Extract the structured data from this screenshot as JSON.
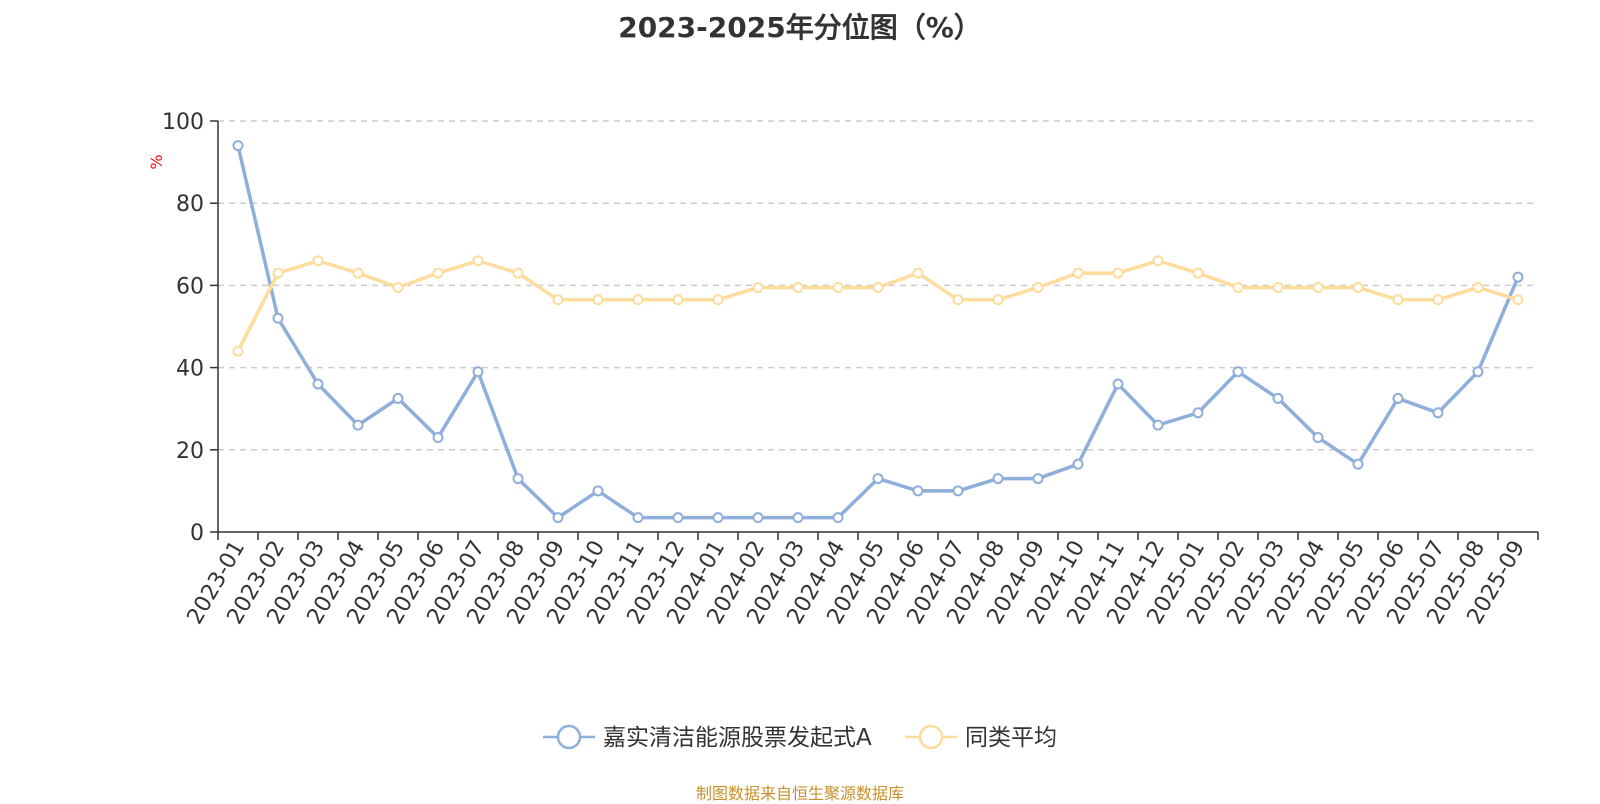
{
  "chart_data": {
    "type": "line",
    "title": "2023-2025年分位图（%）",
    "y_unit": "%",
    "ylim": [
      0,
      100
    ],
    "yticks": [
      0,
      20,
      40,
      60,
      80,
      100
    ],
    "grid": "horizontal dashed",
    "legend_position": "bottom-center",
    "categories": [
      "2023-01",
      "2023-02",
      "2023-03",
      "2023-04",
      "2023-05",
      "2023-06",
      "2023-07",
      "2023-08",
      "2023-09",
      "2023-10",
      "2023-11",
      "2023-12",
      "2024-01",
      "2024-02",
      "2024-03",
      "2024-04",
      "2024-05",
      "2024-06",
      "2024-07",
      "2024-08",
      "2024-09",
      "2024-10",
      "2024-11",
      "2024-12",
      "2025-01",
      "2025-02",
      "2025-03",
      "2025-04",
      "2025-05",
      "2025-06",
      "2025-07",
      "2025-08",
      "2025-09"
    ],
    "series": [
      {
        "name": "嘉实清洁能源股票发起式A",
        "color": "#8eaedb",
        "values": [
          94,
          52,
          36,
          26,
          32.5,
          23,
          39,
          13,
          3.5,
          10,
          3.5,
          3.5,
          3.5,
          3.5,
          3.5,
          3.5,
          13,
          10,
          10,
          13,
          13,
          16.5,
          36,
          26,
          29,
          39,
          32.5,
          23,
          16.5,
          32.5,
          29,
          39,
          62
        ]
      },
      {
        "name": "同类平均",
        "color": "#fddc9c",
        "values": [
          44,
          63,
          66,
          63,
          59.5,
          63,
          66,
          63,
          56.5,
          56.5,
          56.5,
          56.5,
          56.5,
          59.5,
          59.5,
          59.5,
          59.5,
          63,
          56.5,
          56.5,
          59.5,
          63,
          63,
          66,
          63,
          59.5,
          59.5,
          59.5,
          59.5,
          56.5,
          56.5,
          59.5,
          56.5
        ]
      }
    ]
  },
  "source_note": "制图数据来自恒生聚源数据库"
}
